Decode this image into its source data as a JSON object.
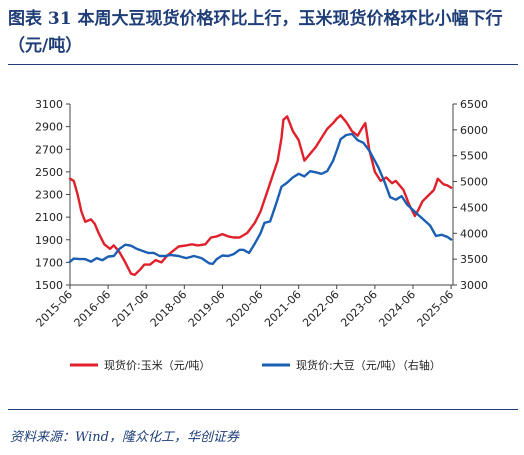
{
  "title": "图表 31    本周大豆现货价格环比上行，玉米现货价格环比小幅下行（元/吨）",
  "source": "资料来源：Wind，隆众化工，华创证券",
  "chart_data": {
    "type": "line",
    "left_axis": {
      "min": 1500,
      "max": 3100,
      "ticks": [
        "3100",
        "2900",
        "2700",
        "2500",
        "2300",
        "2100",
        "1900",
        "1700",
        "1500"
      ]
    },
    "right_axis": {
      "min": 3000,
      "max": 6500,
      "ticks": [
        "6500",
        "6000",
        "5500",
        "5000",
        "4500",
        "4000",
        "3500",
        "3000"
      ]
    },
    "x_ticks": [
      "2015-06",
      "2016-06",
      "2017-06",
      "2018-06",
      "2019-06",
      "2020-06",
      "2021-06",
      "2022-06",
      "2023-06",
      "2024-06",
      "2025-06"
    ],
    "series": [
      {
        "name": "现货价:玉米（元/吨）",
        "axis": "left",
        "color": "#e0202a",
        "x": [
          2015.45,
          2015.55,
          2015.65,
          2015.75,
          2015.85,
          2016.0,
          2016.1,
          2016.2,
          2016.35,
          2016.5,
          2016.6,
          2016.75,
          2016.9,
          2017.05,
          2017.15,
          2017.3,
          2017.4,
          2017.55,
          2017.7,
          2017.85,
          2018.0,
          2018.15,
          2018.3,
          2018.5,
          2018.65,
          2018.8,
          2019.0,
          2019.15,
          2019.3,
          2019.45,
          2019.6,
          2019.75,
          2019.9,
          2020.1,
          2020.3,
          2020.45,
          2020.6,
          2020.75,
          2020.9,
          2021.0,
          2021.05,
          2021.15,
          2021.3,
          2021.45,
          2021.6,
          2021.75,
          2021.9,
          2022.05,
          2022.2,
          2022.35,
          2022.45,
          2022.55,
          2022.7,
          2022.85,
          2023.0,
          2023.1,
          2023.2,
          2023.3,
          2023.45,
          2023.6,
          2023.75,
          2023.9,
          2024.0,
          2024.1,
          2024.2,
          2024.35,
          2024.5,
          2024.6,
          2024.7,
          2024.85,
          2025.0,
          2025.1,
          2025.25,
          2025.35,
          2025.45
        ],
        "values": [
          2440,
          2420,
          2300,
          2150,
          2060,
          2080,
          2040,
          1960,
          1860,
          1820,
          1850,
          1790,
          1700,
          1600,
          1590,
          1640,
          1680,
          1680,
          1720,
          1700,
          1760,
          1800,
          1840,
          1850,
          1860,
          1850,
          1860,
          1920,
          1930,
          1950,
          1930,
          1920,
          1920,
          1960,
          2050,
          2150,
          2300,
          2450,
          2600,
          2800,
          2960,
          2990,
          2860,
          2780,
          2600,
          2660,
          2720,
          2800,
          2880,
          2930,
          2970,
          3000,
          2940,
          2860,
          2820,
          2880,
          2930,
          2700,
          2500,
          2420,
          2450,
          2400,
          2420,
          2380,
          2340,
          2210,
          2110,
          2170,
          2240,
          2290,
          2340,
          2440,
          2390,
          2380,
          2360
        ]
      },
      {
        "name": "现货价:大豆（元/吨）（右轴）",
        "axis": "right",
        "color": "#1a5fb4",
        "x": [
          2015.45,
          2015.55,
          2015.7,
          2015.85,
          2016.0,
          2016.15,
          2016.3,
          2016.45,
          2016.6,
          2016.75,
          2016.9,
          2017.05,
          2017.2,
          2017.35,
          2017.5,
          2017.65,
          2017.8,
          2017.95,
          2018.1,
          2018.3,
          2018.5,
          2018.7,
          2018.9,
          2019.1,
          2019.2,
          2019.3,
          2019.45,
          2019.6,
          2019.75,
          2019.9,
          2020.0,
          2020.15,
          2020.3,
          2020.45,
          2020.55,
          2020.7,
          2020.85,
          2021.0,
          2021.15,
          2021.3,
          2021.45,
          2021.6,
          2021.75,
          2021.9,
          2022.05,
          2022.2,
          2022.35,
          2022.45,
          2022.55,
          2022.7,
          2022.85,
          2023.0,
          2023.15,
          2023.3,
          2023.45,
          2023.55,
          2023.7,
          2023.85,
          2024.0,
          2024.15,
          2024.3,
          2024.45,
          2024.6,
          2024.75,
          2024.9,
          2025.05,
          2025.2,
          2025.35,
          2025.45
        ],
        "values": [
          3450,
          3510,
          3500,
          3500,
          3450,
          3520,
          3480,
          3550,
          3560,
          3700,
          3780,
          3760,
          3700,
          3660,
          3620,
          3620,
          3560,
          3560,
          3580,
          3560,
          3520,
          3560,
          3520,
          3420,
          3410,
          3500,
          3570,
          3560,
          3600,
          3680,
          3680,
          3620,
          3800,
          4000,
          4200,
          4230,
          4550,
          4900,
          4980,
          5080,
          5150,
          5100,
          5200,
          5180,
          5150,
          5200,
          5400,
          5600,
          5820,
          5900,
          5920,
          5800,
          5750,
          5600,
          5400,
          5260,
          5000,
          4700,
          4650,
          4720,
          4550,
          4450,
          4350,
          4250,
          4150,
          3950,
          3970,
          3930,
          3880
        ]
      }
    ]
  }
}
